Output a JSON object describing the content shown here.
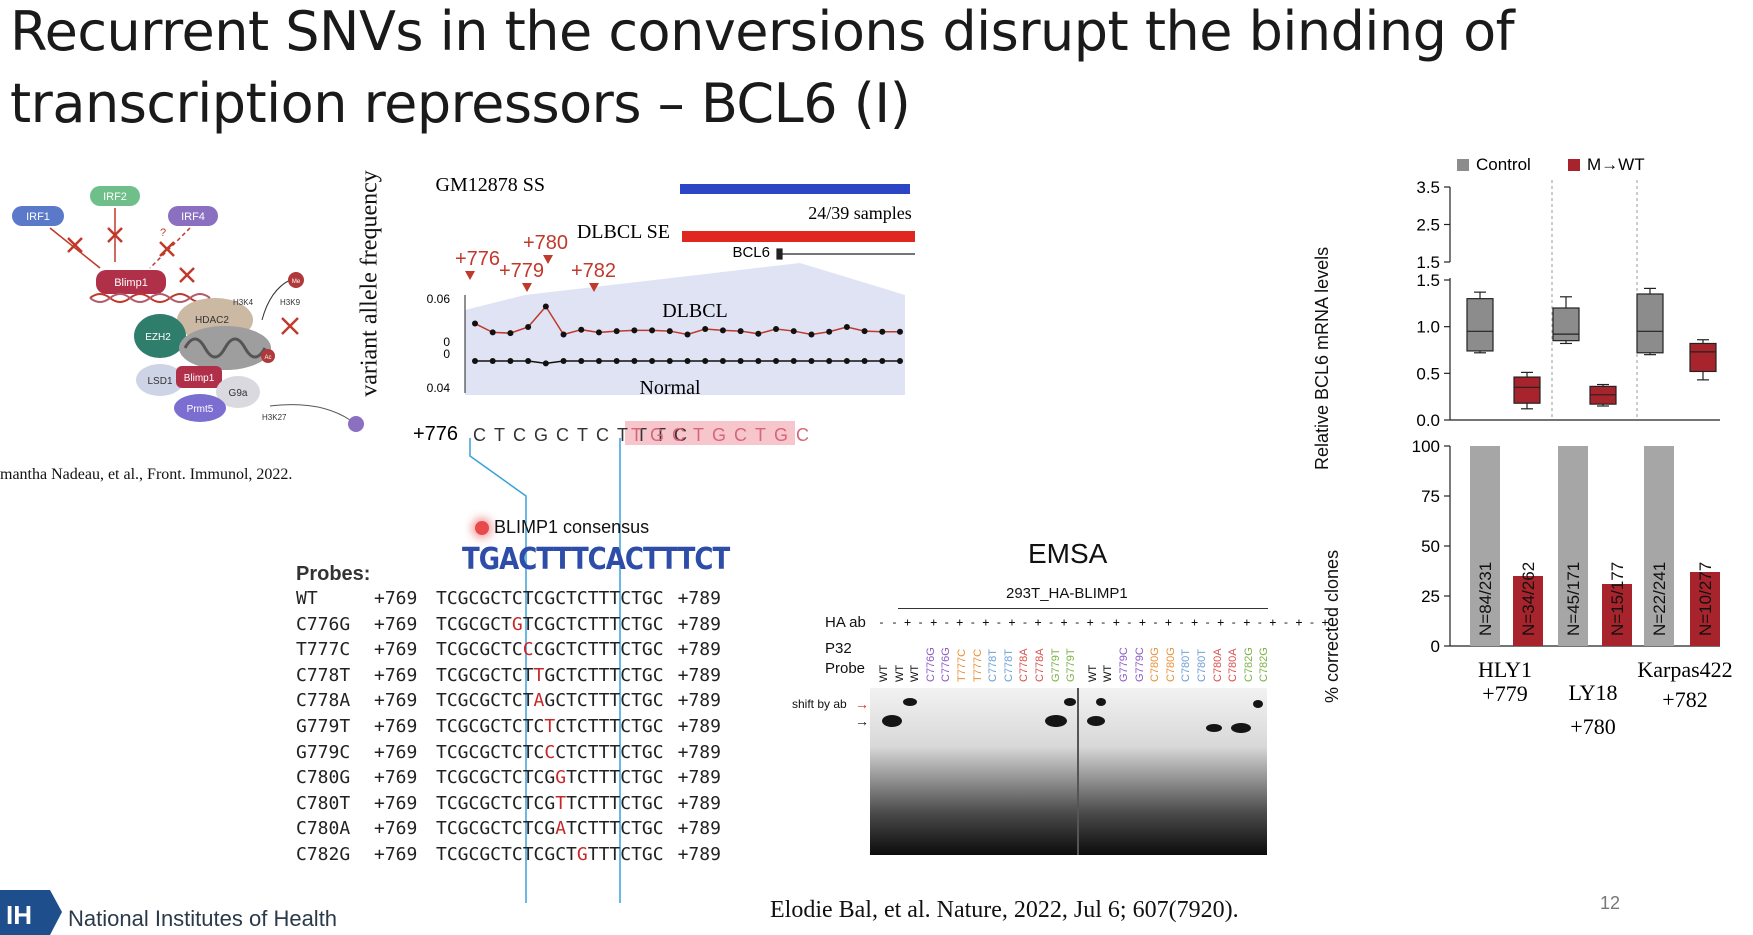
{
  "slide": {
    "title_line1": "Recurrent SNVs in the conversions disrupt the binding of",
    "title_line2": "transcription repressors – BCL6 (I)",
    "page_number": "12",
    "footer_citation": "Elodie Bal, et al. Nature, 2022, Jul 6; 607(7920).",
    "institution": "National Institutes of Health",
    "institution_logo": "IH"
  },
  "left_diagram": {
    "citation": "mantha Nadeau, et al., Front. Immunol, 2022.",
    "nodes": {
      "irf1": "IRF1",
      "irf2": "IRF2",
      "irf4": "IRF4",
      "blimp1_top": "Blimp1",
      "hdac2": "HDAC2",
      "h3k4": "H3K4",
      "h3k9": "H3K9",
      "ezh2": "EZH2",
      "lsd1": "LSD1",
      "blimp1_bottom": "Blimp1",
      "g9a": "G9a",
      "prmt5": "Prmt5",
      "h3k27": "H3K27",
      "me": "Me",
      "ac": "Ac",
      "question": "?"
    },
    "colors": {
      "irf1": "#5b79c9",
      "irf2": "#6fbf8a",
      "irf4": "#8b6fc1",
      "blimp1": "#b0304a",
      "ezh2": "#2f7d6b",
      "hdac2": "#cbb9a3",
      "prmt5": "#7a6fd0",
      "lsd1": "#cfd3e6",
      "g9a": "#d9d9df"
    }
  },
  "vaf_panel": {
    "track_gm12878": "GM12878 SS",
    "track_dlbcl": "DLBCL SE",
    "samples_label": "24/39 samples",
    "gene_label": "BCL6",
    "y_axis_label": "variant allele frequency",
    "dlbcl_label": "DLBCL",
    "normal_label": "Normal",
    "tick_top": "0.06",
    "tick_mid1": "0",
    "tick_mid2": "0",
    "tick_bottom": "0.04",
    "markers": [
      "+776",
      "+779",
      "+780",
      "+782"
    ],
    "seq_start": "+776",
    "seq_plain": "CTCGCTCTTTC",
    "seq_highlight": "TGCTGCTGC",
    "dlbcl_values": [
      0.027,
      0.014,
      0.013,
      0.022,
      0.052,
      0.011,
      0.018,
      0.014,
      0.016,
      0.017,
      0.017,
      0.016,
      0.011,
      0.019,
      0.017,
      0.016,
      0.012,
      0.019,
      0.016,
      0.011,
      0.015,
      0.022,
      0.016,
      0.015,
      0.015
    ],
    "normal_values": [
      0,
      0,
      0,
      0,
      -0.002,
      0,
      0,
      0,
      0,
      0,
      0,
      0,
      0,
      0,
      0,
      0,
      0,
      0,
      0,
      0,
      0,
      0,
      0,
      0,
      0
    ],
    "colors": {
      "gm12878": "#2b45c5",
      "dlbcl": "#e0271f",
      "marker": "#c0392b",
      "shade": "#dfe3f3",
      "highlight": "#f7c6cc"
    }
  },
  "motif": {
    "label": "BLIMP1 consensus",
    "logo_text": "TGACTTTCACTTTCT"
  },
  "probes": {
    "title": "Probes:",
    "rows": [
      {
        "name": "WT",
        "start": "+769",
        "pre": "TCGCGCTCTCGCTCTTTCTGC",
        "mut": "",
        "post": "",
        "end": "+789"
      },
      {
        "name": "C776G",
        "start": "+769",
        "pre": "TCGCGCT",
        "mut": "G",
        "post": "TCGCTCTTTCTGC",
        "end": "+789"
      },
      {
        "name": "T777C",
        "start": "+769",
        "pre": "TCGCGCTC",
        "mut": "C",
        "post": "CGCTCTTTCTGC",
        "end": "+789"
      },
      {
        "name": "C778T",
        "start": "+769",
        "pre": "TCGCGCTCT",
        "mut": "T",
        "post": "GCTCTTTCTGC",
        "end": "+789"
      },
      {
        "name": "C778A",
        "start": "+769",
        "pre": "TCGCGCTCT",
        "mut": "A",
        "post": "GCTCTTTCTGC",
        "end": "+789"
      },
      {
        "name": "G779T",
        "start": "+769",
        "pre": "TCGCGCTCTC",
        "mut": "T",
        "post": "CTCTTTCTGC",
        "end": "+789"
      },
      {
        "name": "G779C",
        "start": "+769",
        "pre": "TCGCGCTCTC",
        "mut": "C",
        "post": "CTCTTTCTGC",
        "end": "+789"
      },
      {
        "name": "C780G",
        "start": "+769",
        "pre": "TCGCGCTCTCG",
        "mut": "G",
        "post": "TCTTTCTGC",
        "end": "+789"
      },
      {
        "name": "C780T",
        "start": "+769",
        "pre": "TCGCGCTCTCG",
        "mut": "T",
        "post": "TCTTTCTGC",
        "end": "+789"
      },
      {
        "name": "C780A",
        "start": "+769",
        "pre": "TCGCGCTCTCG",
        "mut": "A",
        "post": "TCTTTCTGC",
        "end": "+789"
      },
      {
        "name": "C782G",
        "start": "+769",
        "pre": "TCGCGCTCTCGCT",
        "mut": "G",
        "post": "TTTCTGC",
        "end": "+789"
      }
    ]
  },
  "emsa": {
    "title": "EMSA",
    "construct": "293T_HA-BLIMP1",
    "row_ha": "HA ab",
    "row_p32": "P32",
    "row_probe": "Probe",
    "shift_label": "shift by ab",
    "ha_signs": "- - + - + - + - + - + - + - + - + - + - + - + - + - + - + - + - + - +",
    "lanes_left": [
      "WT",
      "WT",
      "WT",
      "C776G",
      "C776G",
      "T777C",
      "T777C",
      "C778T",
      "C778T",
      "C778A",
      "C778A",
      "G779T",
      "G779T"
    ],
    "lanes_right": [
      "WT",
      "WT",
      "G779C",
      "G779C",
      "C780G",
      "C780G",
      "C780T",
      "C780T",
      "C780A",
      "C780A",
      "C782G",
      "C782G"
    ],
    "lane_colors": {
      "WT": "#111111",
      "C776G": "#8e5cc6",
      "T777C": "#e8923b",
      "C778T": "#6f9fd6",
      "C778A": "#d9534f",
      "G779T": "#7fb24a",
      "G779C": "#8e5cc6",
      "C780G": "#e8923b",
      "C780T": "#6f9fd6",
      "C780A": "#d9534f",
      "C782G": "#7fb24a"
    }
  },
  "chart_data": [
    {
      "type": "box",
      "title": "",
      "ylabel": "Relative BCL6 mRNA levels",
      "ylim_top_segment": [
        1.5,
        3.5
      ],
      "ylim_bottom_segment": [
        0,
        1.5
      ],
      "yticks": [
        "0.0",
        "0.5",
        "1.0",
        "1.5",
        "1.5",
        "2.5",
        "3.5"
      ],
      "legend": [
        "Control",
        "M→WT"
      ],
      "groups": [
        "HLY1",
        "LY18",
        "Karpas422"
      ],
      "series": [
        {
          "name": "Control",
          "color": "#8c8c8c",
          "boxes": [
            {
              "min": 0.72,
              "q1": 0.74,
              "median": 0.95,
              "q3": 1.3,
              "max": 1.37
            },
            {
              "min": 0.82,
              "q1": 0.85,
              "median": 0.92,
              "q3": 1.2,
              "max": 1.32
            },
            {
              "min": 0.7,
              "q1": 0.72,
              "median": 0.95,
              "q3": 1.35,
              "max": 1.41
            }
          ]
        },
        {
          "name": "M→WT",
          "color": "#a8242c",
          "boxes": [
            {
              "min": 0.12,
              "q1": 0.18,
              "median": 0.35,
              "q3": 0.46,
              "max": 0.51
            },
            {
              "min": 0.15,
              "q1": 0.17,
              "median": 0.27,
              "q3": 0.36,
              "max": 0.38
            },
            {
              "min": 0.43,
              "q1": 0.52,
              "median": 0.73,
              "q3": 0.82,
              "max": 0.86
            }
          ]
        }
      ]
    },
    {
      "type": "bar",
      "title": "",
      "ylabel": "% corrected clones",
      "ylim": [
        0,
        100
      ],
      "yticks": [
        "0",
        "25",
        "50",
        "75",
        "100"
      ],
      "categories": [
        "HLY1 +779",
        "LY18 +780",
        "Karpas422 +782"
      ],
      "category_names": [
        "HLY1",
        "LY18",
        "Karpas422"
      ],
      "category_positions": [
        "+779",
        "+780",
        "+782"
      ],
      "series": [
        {
          "name": "Control",
          "color": "#a6a6a6",
          "values": [
            100,
            100,
            100
          ],
          "labels": [
            "N=84/231",
            "N=45/171",
            "N=22/241"
          ]
        },
        {
          "name": "M→WT",
          "color": "#a8242c",
          "values": [
            35,
            31,
            37
          ],
          "labels": [
            "N=34/262",
            "N=15/177",
            "N=10/277"
          ]
        }
      ]
    }
  ]
}
